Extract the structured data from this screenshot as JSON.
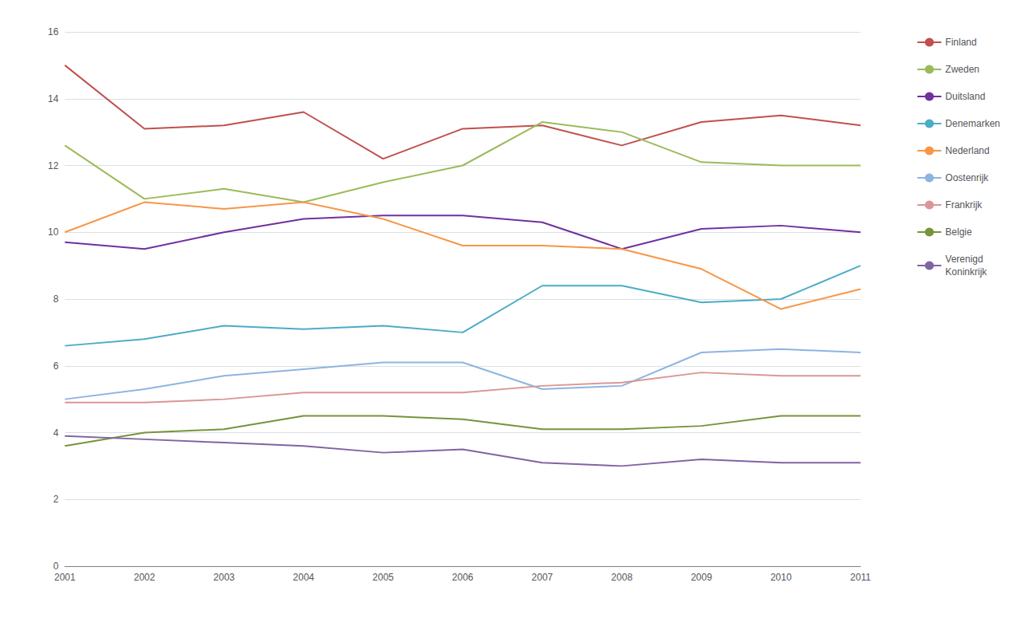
{
  "chart_data": {
    "type": "line",
    "x": [
      2001,
      2002,
      2003,
      2004,
      2005,
      2006,
      2007,
      2008,
      2009,
      2010,
      2011
    ],
    "series": [
      {
        "name": "Finland",
        "color": "#C0504D",
        "values": [
          15.0,
          13.1,
          13.2,
          13.6,
          12.2,
          13.1,
          13.2,
          12.6,
          13.3,
          13.5,
          13.2
        ]
      },
      {
        "name": "Zweden",
        "color": "#9BBB59",
        "values": [
          12.6,
          11.0,
          11.3,
          10.9,
          11.5,
          12.0,
          13.3,
          13.0,
          12.1,
          12.0,
          12.0
        ]
      },
      {
        "name": "Duitsland",
        "color": "#7030A0",
        "values": [
          9.7,
          9.5,
          10.0,
          10.4,
          10.5,
          10.5,
          10.3,
          9.5,
          10.1,
          10.2,
          10.0
        ]
      },
      {
        "name": "Denemarken",
        "color": "#4BACC6",
        "values": [
          6.6,
          6.8,
          7.2,
          7.1,
          7.2,
          7.0,
          8.4,
          8.4,
          7.9,
          8.0,
          9.0
        ]
      },
      {
        "name": "Nederland",
        "color": "#F79646",
        "values": [
          10.0,
          10.9,
          10.7,
          10.9,
          10.4,
          9.6,
          9.6,
          9.5,
          8.9,
          7.7,
          8.3
        ]
      },
      {
        "name": "Oostenrijk",
        "color": "#8DB4E2",
        "values": [
          5.0,
          5.3,
          5.7,
          5.9,
          6.1,
          6.1,
          5.3,
          5.4,
          6.4,
          6.5,
          6.4
        ]
      },
      {
        "name": "Frankrijk",
        "color": "#DA9694",
        "values": [
          4.9,
          4.9,
          5.0,
          5.2,
          5.2,
          5.2,
          5.4,
          5.5,
          5.8,
          5.7,
          5.7
        ]
      },
      {
        "name": "Belgie",
        "color": "#77933C",
        "values": [
          3.6,
          4.0,
          4.1,
          4.5,
          4.5,
          4.4,
          4.1,
          4.1,
          4.2,
          4.5,
          4.5
        ]
      },
      {
        "name": "Verenigd\nKoninkrijk",
        "color": "#8064A2",
        "values": [
          3.9,
          3.8,
          3.7,
          3.6,
          3.4,
          3.5,
          3.1,
          3.0,
          3.2,
          3.1,
          3.1
        ]
      }
    ],
    "xlim": [
      2001,
      2011
    ],
    "xticks": [
      2001,
      2002,
      2003,
      2004,
      2005,
      2006,
      2007,
      2008,
      2009,
      2010,
      2011
    ],
    "ylim": [
      0,
      16
    ],
    "yticks": [
      0,
      2,
      4,
      6,
      8,
      10,
      12,
      14,
      16
    ],
    "grid": "y",
    "legend": "right"
  }
}
